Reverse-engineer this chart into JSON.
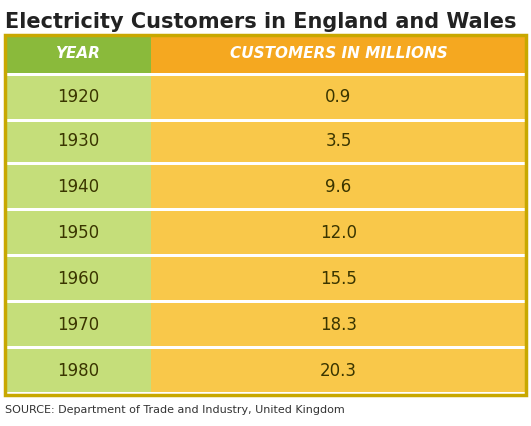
{
  "title": "Electricity Customers in England and Wales",
  "col1_header": "YEAR",
  "col2_header": "CUSTOMERS IN MILLIONS",
  "years": [
    "1920",
    "1930",
    "1940",
    "1950",
    "1960",
    "1970",
    "1980"
  ],
  "values": [
    "0.9",
    "3.5",
    "9.6",
    "12.0",
    "15.5",
    "18.3",
    "20.3"
  ],
  "source": "SOURCE: Department of Trade and Industry, United Kingdom",
  "title_fontsize": 15,
  "header_fontsize": 11,
  "data_fontsize": 12,
  "source_fontsize": 8,
  "header_bg_green": "#8aba3b",
  "header_bg_orange": "#f5a820",
  "row_bg_green": "#c5de7a",
  "row_bg_orange": "#f9c84a",
  "divider_color": "#ffffff",
  "header_text_color": "#ffffff",
  "data_text_color": "#3a3500",
  "title_text_color": "#222222",
  "border_color": "#c8a800",
  "col_split": 0.28
}
